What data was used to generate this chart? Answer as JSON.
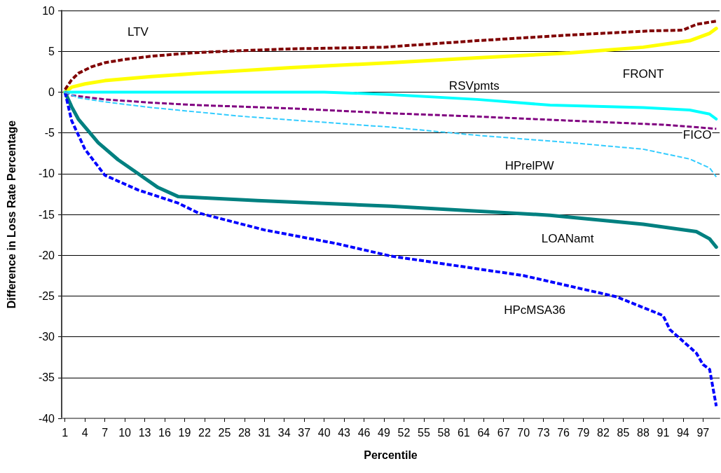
{
  "chart_data": {
    "type": "line",
    "xlabel": "Percentile",
    "ylabel": "Difference in Loss Rate Percentage",
    "xlim": [
      0.5,
      99.5
    ],
    "xticks": [
      1,
      4,
      7,
      10,
      13,
      16,
      19,
      22,
      25,
      28,
      31,
      34,
      37,
      40,
      43,
      46,
      49,
      52,
      55,
      58,
      61,
      64,
      67,
      70,
      73,
      76,
      79,
      82,
      85,
      88,
      91,
      94,
      97
    ],
    "ylim": [
      -40,
      10
    ],
    "yticks": [
      -40,
      -35,
      -30,
      -25,
      -20,
      -15,
      -10,
      -5,
      0,
      5,
      10
    ],
    "grid": "y",
    "marker": "none",
    "series": [
      {
        "name": "LTV",
        "color": "#800000",
        "line_style": "dashed",
        "x": [
          1,
          2,
          3,
          5,
          7,
          10,
          14,
          20,
          25,
          35,
          49,
          63,
          77,
          89,
          94,
          96,
          99
        ],
        "values": [
          0.3,
          1.5,
          2.3,
          3.1,
          3.6,
          4.0,
          4.4,
          4.8,
          5.0,
          5.3,
          5.5,
          6.3,
          7.0,
          7.5,
          7.6,
          8.3,
          8.7
        ]
      },
      {
        "name": "FRONT",
        "color": "#ffff00",
        "line_style": "solid",
        "x": [
          1,
          2,
          4,
          7,
          14,
          21,
          35,
          50,
          63,
          77,
          88,
          95,
          98,
          99
        ],
        "values": [
          0,
          0.6,
          1.0,
          1.4,
          1.9,
          2.3,
          3.0,
          3.6,
          4.2,
          4.8,
          5.5,
          6.3,
          7.2,
          7.8
        ]
      },
      {
        "name": "RSVpmts",
        "color": "#00ffff",
        "line_style": "solid",
        "x": [
          1,
          20,
          40,
          50,
          63,
          74,
          88,
          95,
          98,
          99
        ],
        "values": [
          0,
          0,
          0,
          -0.3,
          -0.9,
          -1.6,
          -1.9,
          -2.2,
          -2.7,
          -3.3
        ]
      },
      {
        "name": "FICO",
        "color": "#800080",
        "line_style": "dashed",
        "x": [
          1,
          2,
          7,
          14,
          21,
          35,
          50,
          63,
          77,
          91,
          99
        ],
        "values": [
          0,
          -0.4,
          -0.9,
          -1.3,
          -1.6,
          -2.0,
          -2.6,
          -3.0,
          -3.5,
          -4.0,
          -4.5
        ]
      },
      {
        "name": "HPrelPW",
        "color": "#33ccff",
        "line_style": "dashed",
        "x": [
          1,
          3,
          7,
          14,
          28,
          50,
          63,
          77,
          88,
          95,
          98,
          99
        ],
        "values": [
          0,
          -0.7,
          -1.2,
          -1.9,
          -3.0,
          -4.3,
          -5.3,
          -6.2,
          -7.0,
          -8.2,
          -9.3,
          -10.4
        ]
      },
      {
        "name": "LOANamt",
        "color": "#008080",
        "line_style": "solid",
        "x": [
          1,
          2,
          3,
          6,
          9,
          12,
          15,
          18,
          30,
          50,
          74,
          88,
          96,
          98,
          99
        ],
        "values": [
          0,
          -1.8,
          -3.3,
          -6.2,
          -8.3,
          -10.0,
          -11.7,
          -12.8,
          -13.3,
          -14.0,
          -15.1,
          -16.2,
          -17.1,
          -18,
          -19.0
        ]
      },
      {
        "name": "HPcMSA36",
        "color": "#0000ff",
        "line_style": "dashed",
        "x": [
          1,
          2,
          4,
          7,
          12,
          18,
          21,
          31,
          42,
          50,
          70,
          84,
          91,
          92,
          96,
          97,
          98,
          99
        ],
        "values": [
          0,
          -3.5,
          -7,
          -10.2,
          -12,
          -13.6,
          -14.8,
          -16.9,
          -18.6,
          -20.1,
          -22.5,
          -25.1,
          -27.4,
          -29.1,
          -32,
          -33.4,
          -34,
          -38.5
        ]
      }
    ]
  }
}
